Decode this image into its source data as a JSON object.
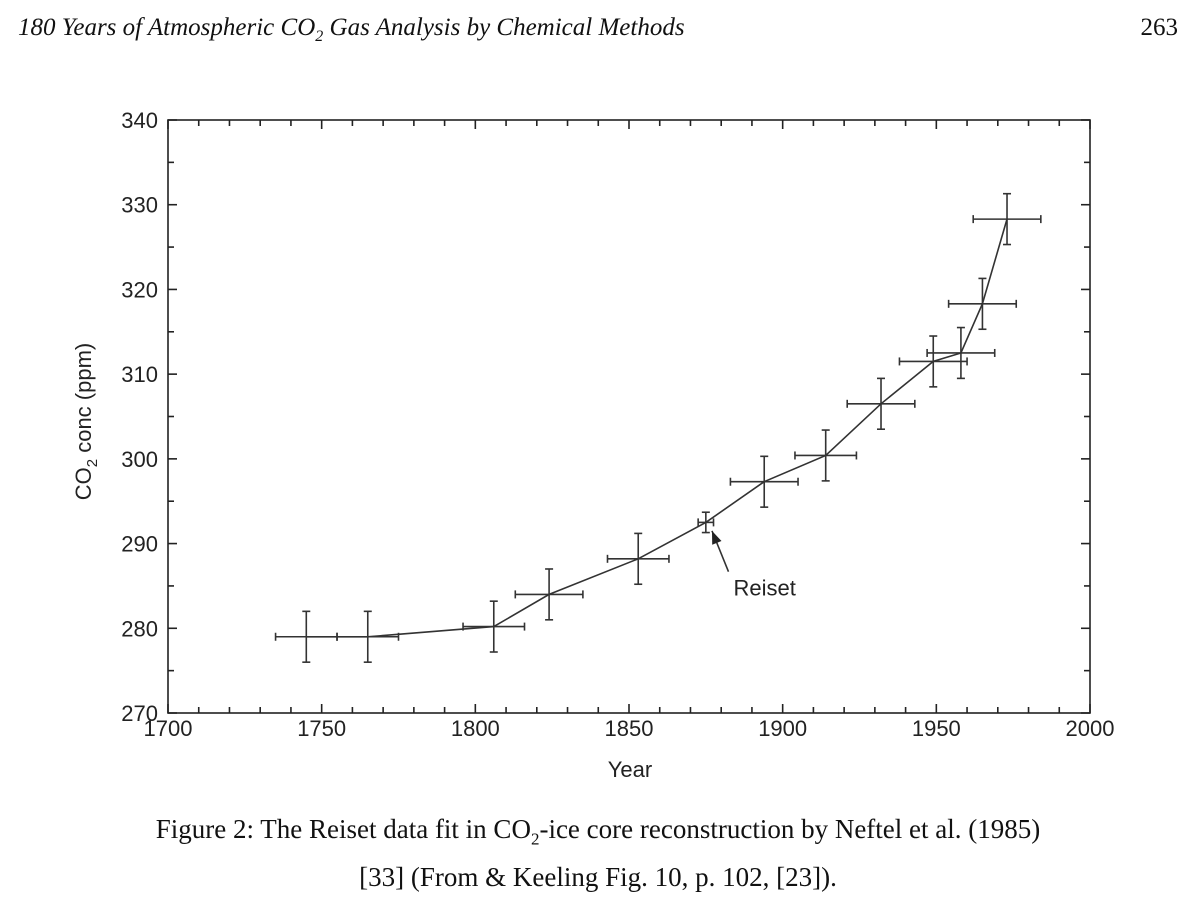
{
  "header": {
    "title_main": "180 Years of Atmospheric CO",
    "title_sub": "2",
    "title_rest": " Gas Analysis by Chemical Methods",
    "page_number": "263"
  },
  "caption": {
    "line1_a": "Figure 2: The Reiset data fit in CO",
    "line1_sub": "2",
    "line1_b": "-ice core reconstruction by Neftel et al. (1985)",
    "line2": "[33] (From & Keeling Fig. 10, p. 102, [23])."
  },
  "chart_data": {
    "type": "line",
    "title": "",
    "xlabel": "Year",
    "ylabel_main": "CO",
    "ylabel_sub": "2",
    "ylabel_rest": " conc (ppm)",
    "xlim": [
      1700,
      2000
    ],
    "ylim": [
      270,
      340
    ],
    "x_ticks": [
      1700,
      1750,
      1800,
      1850,
      1900,
      1950,
      2000
    ],
    "y_ticks": [
      270,
      280,
      290,
      300,
      310,
      320,
      330,
      340
    ],
    "grid": false,
    "series": [
      {
        "points": [
          {
            "x": 1745,
            "y": 279.0,
            "xerr": 10,
            "yerr": 3
          },
          {
            "x": 1765,
            "y": 279.0,
            "xerr": 10,
            "yerr": 3
          },
          {
            "x": 1806,
            "y": 280.2,
            "xerr": 10,
            "yerr": 3
          },
          {
            "x": 1824,
            "y": 284.0,
            "xerr": 11,
            "yerr": 3
          },
          {
            "x": 1853,
            "y": 288.2,
            "xerr": 10,
            "yerr": 3
          },
          {
            "x": 1875,
            "y": 292.5,
            "xerr": 2.5,
            "yerr": 1.2
          },
          {
            "x": 1894,
            "y": 297.3,
            "xerr": 11,
            "yerr": 3
          },
          {
            "x": 1914,
            "y": 300.4,
            "xerr": 10,
            "yerr": 3
          },
          {
            "x": 1932,
            "y": 306.5,
            "xerr": 11,
            "yerr": 3
          },
          {
            "x": 1949,
            "y": 311.5,
            "xerr": 11,
            "yerr": 3
          },
          {
            "x": 1958,
            "y": 312.5,
            "xerr": 11,
            "yerr": 3
          },
          {
            "x": 1965,
            "y": 318.3,
            "xerr": 11,
            "yerr": 3
          },
          {
            "x": 1973,
            "y": 328.3,
            "xerr": 11,
            "yerr": 3
          }
        ]
      }
    ],
    "annotations": [
      {
        "text": "Reiset",
        "x": 1884,
        "y": 285.5,
        "arrow_to_x": 1877,
        "arrow_to_y": 291.5
      }
    ]
  }
}
